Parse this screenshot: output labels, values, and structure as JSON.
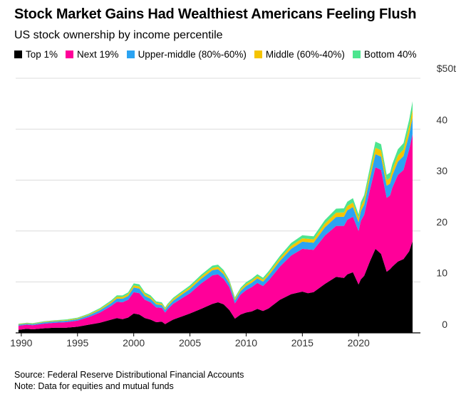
{
  "chart_data": {
    "type": "area",
    "stacked": true,
    "title": "Stock Market Gains Had Wealthiest Americans Feeling Flush",
    "subtitle": "US stock ownership by income percentile",
    "yunit_label": "$50t",
    "ylim": [
      0,
      50
    ],
    "xlim": [
      1989.5,
      2025.5
    ],
    "yticks": [
      0,
      10,
      20,
      30,
      40
    ],
    "xticks": [
      1990,
      1995,
      2000,
      2005,
      2010,
      2015,
      2020
    ],
    "legend_position": "top",
    "series": [
      {
        "name": "Top 1%",
        "color": "#000000"
      },
      {
        "name": "Next 19%",
        "color": "#ff0099"
      },
      {
        "name": "Upper-middle (80%-60%)",
        "color": "#2ba3f2"
      },
      {
        "name": "Middle (60%-40%)",
        "color": "#f5c400"
      },
      {
        "name": "Bottom 40%",
        "color": "#4de58f"
      }
    ],
    "x": [
      1989.75,
      1990.5,
      1991.0,
      1992.0,
      1993.0,
      1994.0,
      1995.0,
      1996.0,
      1997.0,
      1998.0,
      1998.5,
      1999.0,
      1999.5,
      2000.0,
      2000.5,
      2001.0,
      2001.5,
      2002.0,
      2002.5,
      2002.8,
      2003.0,
      2003.5,
      2004.0,
      2005.0,
      2006.0,
      2007.0,
      2007.5,
      2008.0,
      2008.5,
      2009.0,
      2009.5,
      2010.0,
      2010.5,
      2011.0,
      2011.5,
      2012.0,
      2013.0,
      2014.0,
      2015.0,
      2015.5,
      2016.0,
      2017.0,
      2018.0,
      2018.7,
      2019.0,
      2019.5,
      2020.0,
      2020.2,
      2020.5,
      2021.0,
      2021.5,
      2022.0,
      2022.5,
      2022.8,
      2023.0,
      2023.5,
      2024.0,
      2024.5,
      2024.8
    ],
    "stack_values": {
      "Top 1%": [
        0.6,
        0.8,
        0.7,
        0.9,
        1.0,
        1.0,
        1.2,
        1.6,
        2.0,
        2.6,
        2.9,
        2.7,
        3.0,
        3.8,
        3.6,
        2.9,
        2.6,
        2.1,
        2.2,
        1.7,
        2.0,
        2.6,
        3.0,
        3.8,
        4.7,
        5.7,
        6.0,
        5.6,
        4.5,
        2.8,
        3.6,
        4.0,
        4.2,
        4.7,
        4.3,
        4.8,
        6.5,
        7.6,
        8.1,
        7.8,
        8.0,
        9.6,
        11.0,
        10.8,
        11.5,
        11.9,
        9.5,
        10.5,
        11.2,
        14.0,
        16.5,
        15.5,
        12.0,
        12.5,
        13.0,
        14.0,
        14.5,
        16.0,
        18.0
      ],
      "Next 19%": [
        0.8,
        0.8,
        0.8,
        0.9,
        1.0,
        1.1,
        1.2,
        1.5,
        2.0,
        2.7,
        3.2,
        3.3,
        3.5,
        4.2,
        4.2,
        3.6,
        3.4,
        2.9,
        2.7,
        2.3,
        2.6,
        3.1,
        3.4,
        4.0,
        5.0,
        5.6,
        5.5,
        5.0,
        4.5,
        3.0,
        3.9,
        4.4,
        4.8,
        5.1,
        4.9,
        5.5,
        6.5,
        7.6,
        8.4,
        8.6,
        8.3,
        9.5,
        10.0,
        10.2,
        10.7,
        10.9,
        10.5,
        11.5,
        12.0,
        14.0,
        16.0,
        16.5,
        14.5,
        14.5,
        15.5,
        17.0,
        17.5,
        20.0,
        21.0
      ],
      "Upper-middle (80%-60%)": [
        0.2,
        0.2,
        0.2,
        0.25,
        0.25,
        0.28,
        0.3,
        0.35,
        0.45,
        0.55,
        0.65,
        0.7,
        0.75,
        0.9,
        0.9,
        0.75,
        0.7,
        0.6,
        0.55,
        0.5,
        0.55,
        0.6,
        0.7,
        0.8,
        0.9,
        1.0,
        1.0,
        0.9,
        0.75,
        0.6,
        0.7,
        0.8,
        0.85,
        0.9,
        0.85,
        0.95,
        1.1,
        1.3,
        1.4,
        1.4,
        1.4,
        1.6,
        1.75,
        1.8,
        1.85,
        1.9,
        1.7,
        1.9,
        2.0,
        2.3,
        2.6,
        2.6,
        2.4,
        2.3,
        2.4,
        2.6,
        2.7,
        3.0,
        3.3
      ],
      "Middle (60%-40%)": [
        0.1,
        0.1,
        0.1,
        0.12,
        0.12,
        0.14,
        0.15,
        0.17,
        0.22,
        0.28,
        0.32,
        0.34,
        0.36,
        0.42,
        0.42,
        0.36,
        0.34,
        0.3,
        0.28,
        0.25,
        0.28,
        0.3,
        0.33,
        0.38,
        0.42,
        0.47,
        0.47,
        0.42,
        0.36,
        0.3,
        0.34,
        0.38,
        0.4,
        0.42,
        0.4,
        0.45,
        0.52,
        0.6,
        0.66,
        0.66,
        0.66,
        0.75,
        0.85,
        0.85,
        0.88,
        0.9,
        0.8,
        0.9,
        0.95,
        1.05,
        1.25,
        1.25,
        1.1,
        1.1,
        1.15,
        1.25,
        1.3,
        1.45,
        1.6
      ],
      "Bottom 40%": [
        0.1,
        0.1,
        0.1,
        0.1,
        0.12,
        0.12,
        0.14,
        0.15,
        0.2,
        0.25,
        0.3,
        0.3,
        0.33,
        0.4,
        0.4,
        0.34,
        0.32,
        0.28,
        0.26,
        0.24,
        0.26,
        0.28,
        0.3,
        0.35,
        0.4,
        0.43,
        0.43,
        0.4,
        0.34,
        0.28,
        0.32,
        0.36,
        0.38,
        0.4,
        0.38,
        0.42,
        0.48,
        0.55,
        0.6,
        0.6,
        0.6,
        0.7,
        0.78,
        0.8,
        0.82,
        0.85,
        0.75,
        0.85,
        0.9,
        1.0,
        1.2,
        1.2,
        1.05,
        1.05,
        1.1,
        1.2,
        1.25,
        1.4,
        1.6
      ]
    }
  },
  "footer": {
    "source": "Source: Federal Reserve Distributional Financial Accounts",
    "note": "Note: Data for equities and mutual funds"
  }
}
